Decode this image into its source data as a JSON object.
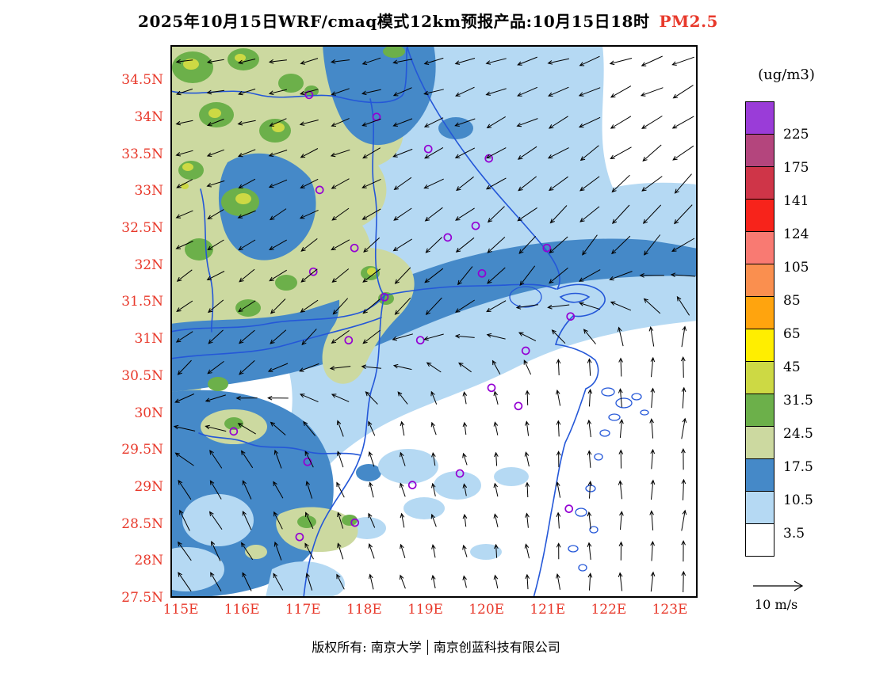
{
  "title": {
    "text": "2025年10月15日WRF/cmaq模式12km预报产品:10月15日18时",
    "pollutant": "PM2.5"
  },
  "axes": {
    "lat_labels": [
      "34.5N",
      "34N",
      "33.5N",
      "33N",
      "32.5N",
      "32N",
      "31.5N",
      "31N",
      "30.5N",
      "30N",
      "29.5N",
      "29N",
      "28.5N",
      "28N",
      "27.5N"
    ],
    "lon_labels": [
      "115E",
      "116E",
      "117E",
      "118E",
      "119E",
      "120E",
      "121E",
      "122E",
      "123E"
    ]
  },
  "legend": {
    "units": "(ug/m3)",
    "labels": [
      "225",
      "175",
      "141",
      "124",
      "105",
      "85",
      "65",
      "45",
      "31.5",
      "24.5",
      "17.5",
      "10.5",
      "3.5"
    ],
    "colors": [
      "#9a3cd8",
      "#b4457d",
      "#cf3548",
      "#f7231b",
      "#f97a72",
      "#fa8f4f",
      "#ffa40e",
      "#ffee00",
      "#cdd944",
      "#6cb04a",
      "#ccd9a0",
      "#4589c8",
      "#b5d9f3",
      "#ffffff"
    ]
  },
  "wind_ref_label": "10 m/s",
  "footer": {
    "owner": "版权所有: 南京大学",
    "company": "南京创蓝科技有限公司"
  },
  "colors": {
    "boundary": "#2457d8",
    "station": "#9400d3",
    "axis_label": "#e8392b",
    "highlight": "#e8392b"
  },
  "chart_data": {
    "type": "heatmap",
    "title": "WRF/CMAQ 12km PM2.5 forecast product for 2025-10-15 18:00 (issued 2025-10-15)",
    "units": "ug/m3",
    "xlabel": "longitude (E)",
    "ylabel": "latitude (N)",
    "lon_ticks": [
      115,
      116,
      117,
      118,
      119,
      120,
      121,
      122,
      123
    ],
    "lat_ticks": [
      27.5,
      28,
      28.5,
      29,
      29.5,
      30,
      30.5,
      31,
      31.5,
      32,
      32.5,
      33,
      33.5,
      34,
      34.5
    ],
    "contour_levels": [
      3.5,
      10.5,
      17.5,
      24.5,
      31.5,
      45,
      65,
      85,
      105,
      124,
      141,
      175,
      225
    ],
    "palette_top_to_bottom": [
      "#9a3cd8",
      "#b4457d",
      "#cf3548",
      "#f7231b",
      "#f97a72",
      "#fa8f4f",
      "#ffa40e",
      "#ffee00",
      "#cdd944",
      "#6cb04a",
      "#ccd9a0",
      "#4589c8",
      "#b5d9f3",
      "#ffffff"
    ],
    "field_summary": [
      {
        "region": "northwest quadrant (inland, upper-left)",
        "pm25_range": "17.5-31.5 with local maxima 31.5-45"
      },
      {
        "region": "diagonal SW-NE band through map center",
        "pm25_range": "10.5-17.5"
      },
      {
        "region": "north-central and northeast coastal strip",
        "pm25_range": "3.5-10.5"
      },
      {
        "region": "southeast (coast and sea, lower-right)",
        "pm25_range": "0-3.5"
      },
      {
        "region": "southwest quadrant",
        "pm25_range": "3.5-17.5 with small 17.5-31.5 patches"
      }
    ],
    "wind": {
      "reference": "10 m/s",
      "grid": {
        "cols": 17,
        "rows": 18
      },
      "pattern": "northeasterly flow (arrows toward WSW) north of a SW-NE convergence band; southerly flow (arrows toward N) over the southeast"
    },
    "stations_fraction_xy": [
      [
        0.263,
        0.09
      ],
      [
        0.391,
        0.13
      ],
      [
        0.489,
        0.188
      ],
      [
        0.604,
        0.205
      ],
      [
        0.283,
        0.262
      ],
      [
        0.579,
        0.327
      ],
      [
        0.526,
        0.348
      ],
      [
        0.349,
        0.367
      ],
      [
        0.714,
        0.367
      ],
      [
        0.591,
        0.413
      ],
      [
        0.271,
        0.41
      ],
      [
        0.406,
        0.456
      ],
      [
        0.759,
        0.491
      ],
      [
        0.338,
        0.534
      ],
      [
        0.474,
        0.534
      ],
      [
        0.674,
        0.553
      ],
      [
        0.609,
        0.62
      ],
      [
        0.66,
        0.653
      ],
      [
        0.12,
        0.699
      ],
      [
        0.26,
        0.754
      ],
      [
        0.549,
        0.775
      ],
      [
        0.459,
        0.796
      ],
      [
        0.756,
        0.839
      ],
      [
        0.35,
        0.864
      ],
      [
        0.245,
        0.89
      ]
    ]
  }
}
